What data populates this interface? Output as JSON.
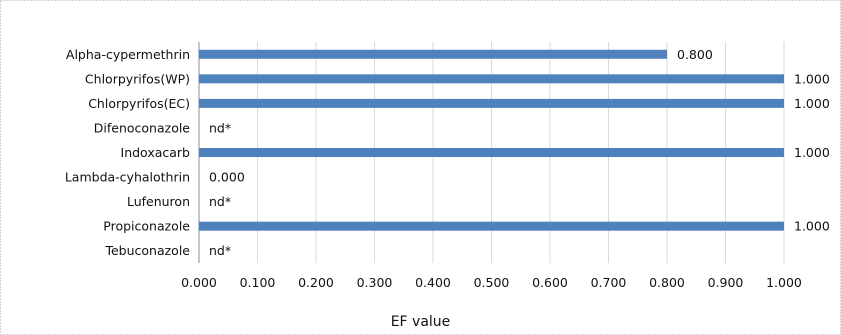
{
  "chart_data": {
    "type": "bar",
    "orientation": "horizontal",
    "categories": [
      "Alpha-cypermethrin",
      "Chlorpyrifos(WP)",
      "Chlorpyrifos(EC)",
      "Difenoconazole",
      "Indoxacarb",
      "Lambda-cyhalothrin",
      "Lufenuron",
      "Propiconazole",
      "Tebuconazole"
    ],
    "values": [
      0.8,
      1.0,
      1.0,
      null,
      1.0,
      0.0,
      null,
      1.0,
      null
    ],
    "data_labels": [
      "0.800",
      "1.000",
      "1.000",
      "nd*",
      "1.000",
      "0.000",
      "nd*",
      "1.000",
      "nd*"
    ],
    "xlabel": "EF value",
    "ylabel": "",
    "title": "",
    "xlim": [
      0,
      1
    ],
    "x_ticks": [
      "0.000",
      "0.100",
      "0.200",
      "0.300",
      "0.400",
      "0.500",
      "0.600",
      "0.700",
      "0.800",
      "0.900",
      "1.000"
    ],
    "grid": "vertical",
    "legend": "none",
    "colors": {
      "bar": "#4f81bd",
      "grid": "#d9d9d9",
      "axis": "#8c8c8c",
      "frame": "#a6a6a6"
    }
  }
}
